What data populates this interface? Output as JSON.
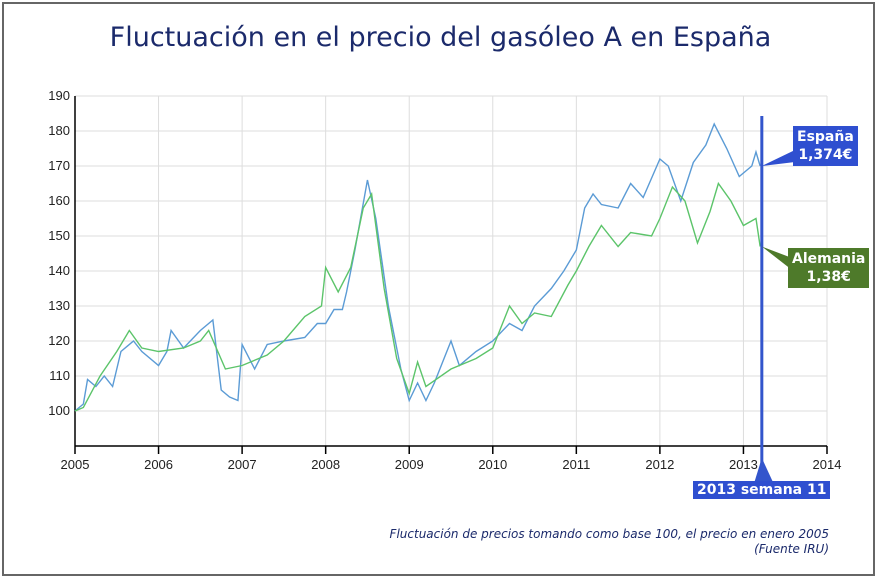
{
  "title": "Fluctuación en el precio del gasóleo A en España",
  "footnote": {
    "line1": "Fluctuación de precios tomando como base 100, el precio en enero 2005",
    "line2": "(Fuente IRU)"
  },
  "colors": {
    "espana": "#5b9bd5",
    "alemania": "#5cc46a",
    "marker": "#3355cc",
    "espana_box": "#2f4fd0",
    "alemania_box": "#4e7a2a"
  },
  "chart_data": {
    "type": "line",
    "title": "Fluctuación en el precio del gasóleo A en España",
    "xlim": [
      2005,
      2014
    ],
    "ylim": [
      90,
      190
    ],
    "grid": true,
    "xticks": [
      2005,
      2006,
      2007,
      2008,
      2009,
      2010,
      2011,
      2012,
      2013,
      2014
    ],
    "yticks": [
      100,
      110,
      120,
      130,
      140,
      150,
      160,
      170,
      180,
      190
    ],
    "series": [
      {
        "name": "España",
        "label_value": "1,374€",
        "points": [
          [
            2005.0,
            100
          ],
          [
            2005.1,
            102
          ],
          [
            2005.15,
            109
          ],
          [
            2005.25,
            107
          ],
          [
            2005.35,
            110
          ],
          [
            2005.45,
            107
          ],
          [
            2005.55,
            117
          ],
          [
            2005.7,
            120
          ],
          [
            2005.8,
            117
          ],
          [
            2006.0,
            113
          ],
          [
            2006.1,
            117
          ],
          [
            2006.15,
            123
          ],
          [
            2006.3,
            118
          ],
          [
            2006.5,
            123
          ],
          [
            2006.65,
            126
          ],
          [
            2006.75,
            106
          ],
          [
            2006.85,
            104
          ],
          [
            2006.95,
            103
          ],
          [
            2007.0,
            119
          ],
          [
            2007.15,
            112
          ],
          [
            2007.3,
            119
          ],
          [
            2007.5,
            120
          ],
          [
            2007.75,
            121
          ],
          [
            2007.9,
            125
          ],
          [
            2008.0,
            125
          ],
          [
            2008.1,
            129
          ],
          [
            2008.2,
            129
          ],
          [
            2008.25,
            134
          ],
          [
            2008.35,
            146
          ],
          [
            2008.5,
            166
          ],
          [
            2008.6,
            155
          ],
          [
            2008.75,
            130
          ],
          [
            2008.9,
            112
          ],
          [
            2009.0,
            103
          ],
          [
            2009.1,
            108
          ],
          [
            2009.2,
            103
          ],
          [
            2009.3,
            108
          ],
          [
            2009.5,
            120
          ],
          [
            2009.6,
            113
          ],
          [
            2009.8,
            117
          ],
          [
            2010.0,
            120
          ],
          [
            2010.2,
            125
          ],
          [
            2010.35,
            123
          ],
          [
            2010.5,
            130
          ],
          [
            2010.7,
            135
          ],
          [
            2010.85,
            140
          ],
          [
            2011.0,
            146
          ],
          [
            2011.1,
            158
          ],
          [
            2011.2,
            162
          ],
          [
            2011.3,
            159
          ],
          [
            2011.5,
            158
          ],
          [
            2011.65,
            165
          ],
          [
            2011.8,
            161
          ],
          [
            2012.0,
            172
          ],
          [
            2012.1,
            170
          ],
          [
            2012.25,
            160
          ],
          [
            2012.4,
            171
          ],
          [
            2012.55,
            176
          ],
          [
            2012.65,
            182
          ],
          [
            2012.8,
            175
          ],
          [
            2012.95,
            167
          ],
          [
            2013.1,
            170
          ],
          [
            2013.15,
            174
          ],
          [
            2013.2,
            170
          ]
        ]
      },
      {
        "name": "Alemania",
        "label_value": "1,38€",
        "points": [
          [
            2005.0,
            100
          ],
          [
            2005.1,
            101
          ],
          [
            2005.3,
            110
          ],
          [
            2005.5,
            117
          ],
          [
            2005.65,
            123
          ],
          [
            2005.8,
            118
          ],
          [
            2006.0,
            117
          ],
          [
            2006.3,
            118
          ],
          [
            2006.5,
            120
          ],
          [
            2006.6,
            123
          ],
          [
            2006.8,
            112
          ],
          [
            2007.0,
            113
          ],
          [
            2007.3,
            116
          ],
          [
            2007.5,
            120
          ],
          [
            2007.75,
            127
          ],
          [
            2007.95,
            130
          ],
          [
            2008.0,
            141
          ],
          [
            2008.15,
            134
          ],
          [
            2008.3,
            141
          ],
          [
            2008.45,
            158
          ],
          [
            2008.55,
            162
          ],
          [
            2008.7,
            135
          ],
          [
            2008.85,
            115
          ],
          [
            2009.0,
            105
          ],
          [
            2009.1,
            114
          ],
          [
            2009.2,
            107
          ],
          [
            2009.5,
            112
          ],
          [
            2009.8,
            115
          ],
          [
            2010.0,
            118
          ],
          [
            2010.2,
            130
          ],
          [
            2010.35,
            125
          ],
          [
            2010.5,
            128
          ],
          [
            2010.7,
            127
          ],
          [
            2010.9,
            136
          ],
          [
            2011.0,
            140
          ],
          [
            2011.15,
            147
          ],
          [
            2011.3,
            153
          ],
          [
            2011.5,
            147
          ],
          [
            2011.65,
            151
          ],
          [
            2011.9,
            150
          ],
          [
            2012.0,
            155
          ],
          [
            2012.15,
            164
          ],
          [
            2012.3,
            160
          ],
          [
            2012.45,
            148
          ],
          [
            2012.6,
            157
          ],
          [
            2012.7,
            165
          ],
          [
            2012.85,
            160
          ],
          [
            2013.0,
            153
          ],
          [
            2013.15,
            155
          ],
          [
            2013.2,
            147
          ]
        ]
      }
    ],
    "marker": {
      "x": 2013.22,
      "label": "2013 semana 11"
    }
  }
}
